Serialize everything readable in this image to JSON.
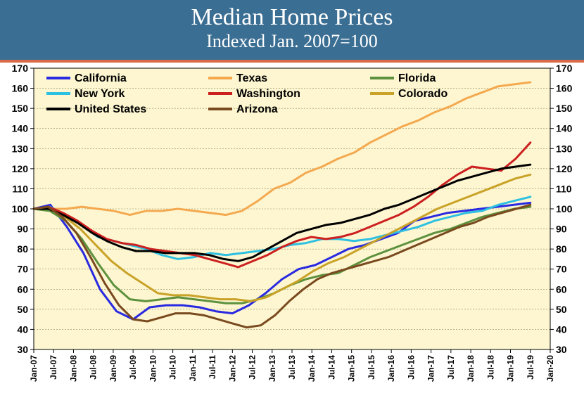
{
  "header": {
    "title": "Median Home Prices",
    "subtitle": "Indexed Jan. 2007=100",
    "bg_color": "#3b6e93",
    "text_color": "#ffffff",
    "accent_color": "#d96b4a"
  },
  "chart": {
    "type": "line",
    "background_color": "#fdf6d1",
    "plot_border_color": "#000000",
    "grid_color": "#8a8a5c",
    "ylim": [
      30,
      170
    ],
    "ytick_step": 10,
    "yticks": [
      30,
      40,
      50,
      60,
      70,
      80,
      90,
      100,
      110,
      120,
      130,
      140,
      150,
      160,
      170
    ],
    "x_labels": [
      "Jan-07",
      "Jul-07",
      "Jan-08",
      "Jul-08",
      "Jan-09",
      "Jul-09",
      "Jan-10",
      "Jul-10",
      "Jan-11",
      "Jul-11",
      "Jan-12",
      "Jul-12",
      "Jan-13",
      "Jul-13",
      "Jan-14",
      "Jul-14",
      "Jan-15",
      "Jul-15",
      "Jan-16",
      "Jul-16",
      "Jan-17",
      "Jul-17",
      "Jan-18",
      "Jul-18",
      "Jan-19",
      "Jul-19",
      "Jan-20"
    ],
    "line_width": 3,
    "axis_fontsize": 14,
    "xaxis_fontsize": 12,
    "legend_fontsize": 16,
    "series": [
      {
        "name": "California",
        "color": "#2a2ae0",
        "values": [
          100,
          102,
          91,
          78,
          60,
          49,
          45,
          51,
          52,
          52,
          51,
          49,
          48,
          52,
          58,
          65,
          70,
          72,
          76,
          80,
          82,
          85,
          88,
          94,
          96,
          98,
          99,
          100,
          101,
          102,
          103
        ]
      },
      {
        "name": "Texas",
        "color": "#f4a94f",
        "values": [
          100,
          100,
          100,
          101,
          100,
          99,
          97,
          99,
          99,
          100,
          99,
          98,
          97,
          99,
          104,
          110,
          113,
          118,
          121,
          125,
          128,
          133,
          137,
          141,
          144,
          148,
          151,
          155,
          158,
          161,
          162,
          163
        ]
      },
      {
        "name": "Florida",
        "color": "#5d913d",
        "values": [
          100,
          99,
          94,
          85,
          73,
          62,
          55,
          54,
          55,
          56,
          55,
          54,
          53,
          53,
          55,
          58,
          62,
          65,
          67,
          68,
          72,
          76,
          79,
          82,
          85,
          88,
          90,
          93,
          96,
          98,
          100,
          101
        ]
      },
      {
        "name": "New York",
        "color": "#2ec0e0",
        "values": [
          100,
          101,
          97,
          92,
          86,
          84,
          82,
          80,
          77,
          75,
          76,
          78,
          77,
          78,
          79,
          80,
          82,
          83,
          85,
          85,
          84,
          85,
          87,
          89,
          91,
          94,
          96,
          98,
          99,
          102,
          104,
          106
        ]
      },
      {
        "name": "Washington",
        "color": "#cc1f1f",
        "values": [
          100,
          101,
          98,
          94,
          89,
          85,
          83,
          82,
          80,
          79,
          78,
          77,
          75,
          73,
          71,
          74,
          77,
          81,
          84,
          86,
          85,
          86,
          88,
          91,
          94,
          97,
          101,
          106,
          112,
          117,
          121,
          120,
          119,
          125,
          133
        ]
      },
      {
        "name": "Colorado",
        "color": "#c9a227",
        "values": [
          100,
          100,
          96,
          90,
          82,
          74,
          68,
          63,
          58,
          57,
          57,
          56,
          55,
          55,
          54,
          56,
          60,
          64,
          69,
          73,
          76,
          80,
          84,
          88,
          92,
          96,
          100,
          103,
          106,
          109,
          112,
          115,
          117
        ]
      },
      {
        "name": "United States",
        "color": "#000000",
        "values": [
          100,
          100,
          97,
          93,
          88,
          84,
          81,
          79,
          79,
          78,
          78,
          78,
          77,
          75,
          74,
          76,
          80,
          84,
          88,
          90,
          92,
          93,
          95,
          97,
          100,
          102,
          105,
          108,
          111,
          114,
          116,
          118,
          120,
          121,
          122
        ]
      },
      {
        "name": "Arizona",
        "color": "#7a4a1f",
        "values": [
          100,
          101,
          96,
          88,
          76,
          63,
          52,
          45,
          44,
          46,
          48,
          48,
          47,
          45,
          43,
          41,
          42,
          47,
          54,
          60,
          65,
          68,
          70,
          72,
          74,
          76,
          79,
          82,
          85,
          88,
          91,
          93,
          96,
          98,
          100,
          102
        ]
      }
    ],
    "legend": {
      "cols": 3,
      "order": [
        "California",
        "Texas",
        "Florida",
        "New York",
        "Washington",
        "Colorado",
        "United States",
        "Arizona"
      ]
    }
  }
}
